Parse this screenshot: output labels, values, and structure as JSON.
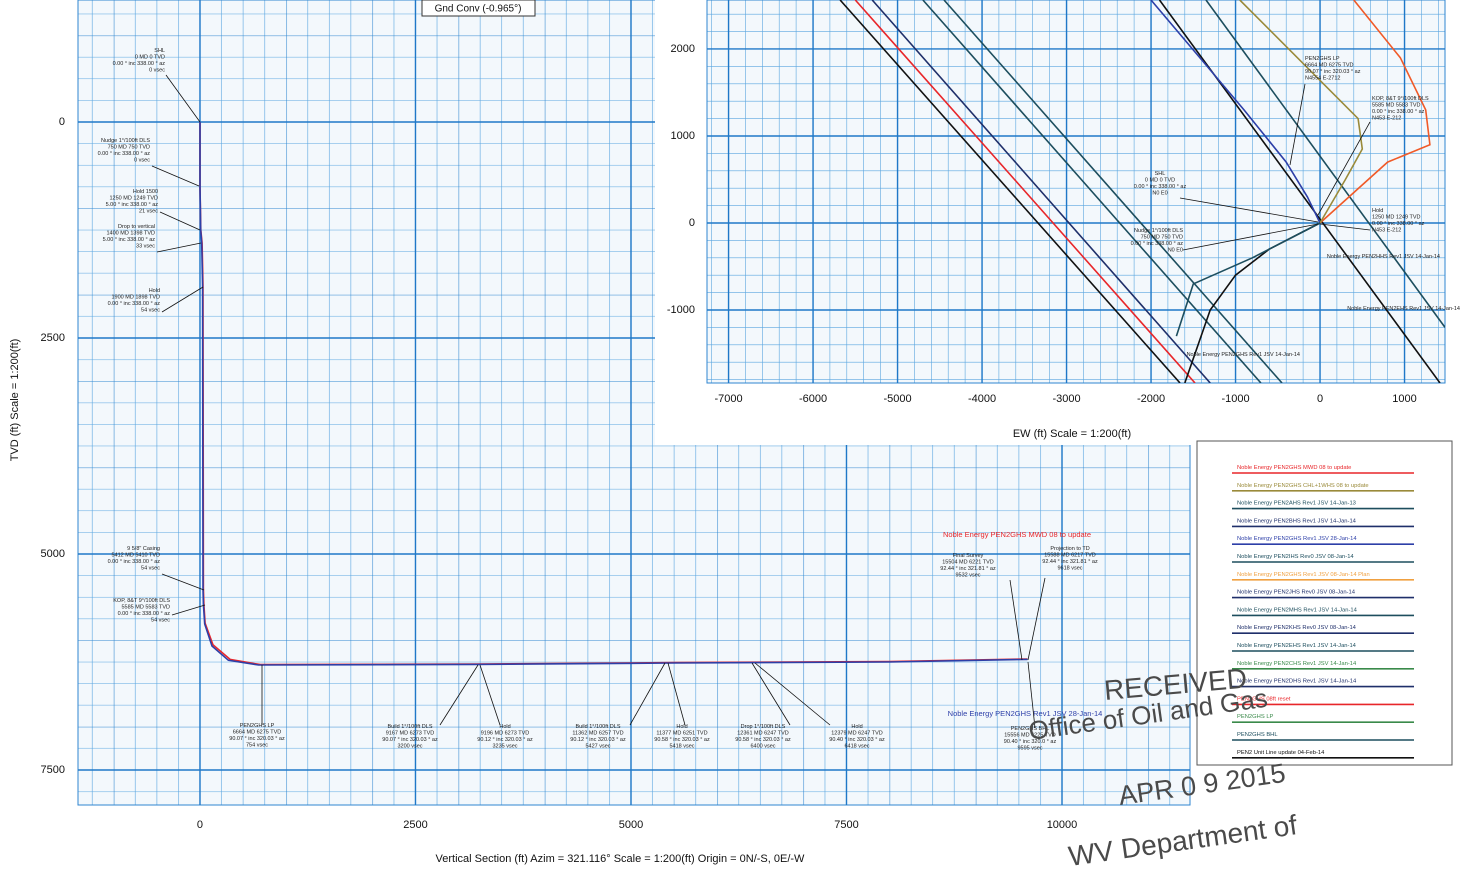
{
  "chart_data": [
    {
      "type": "line",
      "note": "Gnd Conv (-0.965°)",
      "xlabel": "Vertical Section (ft) Azim = 321.116° Scale = 1:200(ft) Origin = 0N/-S, 0E/-W",
      "ylabel": "TVD (ft) Scale = 1:200(ft)",
      "xlim": [
        -1415,
        11485
      ],
      "ylim": [
        -1412,
        7905
      ],
      "y_inverted": true,
      "xticks": [
        0,
        2500,
        5000,
        7500,
        10000
      ],
      "yticks": [
        0,
        2500,
        5000,
        7500
      ],
      "grid": true,
      "series": [
        {
          "name": "Noble Energy PEN2GHS MWD 08 to update",
          "color": "#e8262a",
          "x": [
            0,
            0,
            10,
            25,
            35,
            40,
            45,
            60,
            150,
            350,
            700,
            3200,
            5500,
            8000,
            9600
          ],
          "values": [
            0,
            750,
            1250,
            1400,
            1900,
            5400,
            5585,
            5800,
            6050,
            6220,
            6280,
            6273,
            6257,
            6245,
            6215
          ]
        },
        {
          "name": "Noble Energy PEN2GHS Rev1 JSV 28-Jan-14",
          "color": "#2d3fa8",
          "x": [
            0,
            0,
            8,
            20,
            30,
            35,
            40,
            55,
            140,
            330,
            680,
            3200,
            5500,
            8000,
            9600
          ],
          "values": [
            0,
            750,
            1250,
            1400,
            1900,
            5400,
            5585,
            5810,
            6065,
            6230,
            6285,
            6278,
            6262,
            6250,
            6220
          ]
        }
      ],
      "annotations": [
        [
          "SHL",
          "0 MD 0 TVD",
          "0.00 ° inc 338.00 ° az",
          "0 vsec"
        ],
        [
          "Nudge 1°/100ft DLS",
          "750 MD 750 TVD",
          "0.00 ° inc 338.00 ° az",
          "0 vsec"
        ],
        [
          "Hold 1500",
          "1250 MD 1249 TVD",
          "5.00 ° inc 338.00 ° az",
          "21 vsec"
        ],
        [
          "Drop to vertical",
          "1400 MD 1398 TVD",
          "5.00 ° inc 338.00 ° az",
          "33 vsec"
        ],
        [
          "Hold",
          "1900 MD 1898 TVD",
          "0.00 ° inc 338.00 ° az",
          "54 vsec"
        ],
        [
          "9 5/8\" Casing",
          "5412 MD 5410 TVD",
          "0.00 ° inc 338.00 ° az",
          "54 vsec"
        ],
        [
          "KOP, 8&T 9°/100ft DLS",
          "5585 MD 5583 TVD",
          "0.00 ° inc 338.00 ° az",
          "54 vsec"
        ],
        [
          "PEN2GHS LP",
          "6664 MD 6275 TVD",
          "90.07 ° inc 320.03 ° az",
          "754 vsec"
        ],
        [
          "Build 1°/100ft DLS",
          "9167 MD 6273 TVD",
          "90.07 ° inc 320.03 ° az",
          "3200 vsec"
        ],
        [
          "Hold",
          "9196 MD 6273 TVD",
          "90.12 ° inc 320.03 ° az",
          "3235 vsec"
        ],
        [
          "Build 1°/100ft DLS",
          "11362 MD 6257 TVD",
          "90.12 ° inc 320.03 ° az",
          "5427 vsec"
        ],
        [
          "Hold",
          "11377 MD 6251 TVD",
          "90.58 ° inc 320.03 ° az",
          "5418 vsec"
        ],
        [
          "Drop 1°/100ft DLS",
          "12361 MD 6247 TVD",
          "90.58 ° inc 320.03 ° az",
          "6400 vsec"
        ],
        [
          "Hold",
          "12379 MD 6247 TVD",
          "90.40 ° inc 320.03 ° az",
          "6418 vsec"
        ],
        [
          "Final Survey",
          "15504 MD 6221 TVD",
          "92.44 ° inc 321.81 ° az",
          "9532 vsec"
        ],
        [
          "Projection to TD",
          "15588 MD 6217 TVD",
          "92.44 ° inc 321.81 ° az",
          "9618 vsec"
        ],
        [
          "PEN2GHS BHL",
          "15556 MD 6225 TVD",
          "90.40 ° inc 320.0 ° az",
          "9595 vsec"
        ]
      ]
    },
    {
      "type": "line",
      "xlabel": "EW (ft) Scale = 1:200(ft)",
      "xlim": [
        -7255,
        1479
      ],
      "ylim": [
        -1839,
        2563
      ],
      "xticks": [
        -7000,
        -6000,
        -5000,
        -4000,
        -3000,
        -2000,
        -1000,
        0,
        1000
      ],
      "yticks": [
        -1000,
        0,
        1000,
        2000
      ],
      "grid": true,
      "series": [
        {
          "color": "#111111",
          "x": [
            -5680,
            -1657
          ],
          "values": [
            2563,
            -1839
          ]
        },
        {
          "color": "#e8262a",
          "x": [
            -5500,
            -1480
          ],
          "values": [
            2563,
            -1839
          ]
        },
        {
          "color": "#1f2f6a",
          "x": [
            -5300,
            -1300
          ],
          "values": [
            2563,
            -1839
          ]
        },
        {
          "color": "#1d4e5e",
          "x": [
            -4700,
            -700
          ],
          "values": [
            2563,
            -1839
          ]
        },
        {
          "color": "#1d4e5e",
          "x": [
            -4450,
            -450
          ],
          "values": [
            2563,
            -1839
          ]
        },
        {
          "color": "#111111",
          "x": [
            -1900,
            1420
          ],
          "values": [
            2563,
            -1839
          ]
        },
        {
          "color": "#1d4e5e",
          "x": [
            -1350,
            1479
          ],
          "values": [
            2563,
            -1200
          ]
        },
        {
          "color": "#2d3fa8",
          "x": [
            0,
            -150,
            -400,
            -900,
            -2000
          ],
          "values": [
            0,
            300,
            700,
            1300,
            2563
          ]
        },
        {
          "color": "#f05a28",
          "x": [
            0,
            800,
            1300,
            1250,
            950,
            400
          ],
          "values": [
            0,
            700,
            900,
            1300,
            1900,
            2563
          ]
        },
        {
          "color": "#9a8a3a",
          "x": [
            0,
            300,
            500,
            450,
            -950
          ],
          "values": [
            0,
            500,
            850,
            1200,
            2563
          ]
        },
        {
          "color": "#111111",
          "x": [
            0,
            -600,
            -1000,
            -1300,
            -1600
          ],
          "values": [
            0,
            -300,
            -600,
            -1000,
            -1839
          ]
        },
        {
          "color": "#1d4e5e",
          "x": [
            0,
            -800,
            -1500,
            -1700
          ],
          "values": [
            0,
            -400,
            -700,
            -1300
          ]
        }
      ],
      "annotations": [
        [
          "PEN2GHS LP",
          "6664 MD 6275 TVD",
          "90.07 ° inc 320.03 ° az",
          "N4554 E-2712"
        ],
        [
          "KOP, 8&T 9°/100ft DLS",
          "5585 MD 5583 TVD",
          "0.00 ° inc 338.00 ° az",
          "N453 E-212"
        ],
        [
          "SHL",
          "0 MD 0 TVD",
          "0.00 ° inc 338.00 ° az",
          "N0 E0"
        ],
        [
          "Nudge 1°/100ft DLS",
          "750 MD 750 TVD",
          "0.00 ° inc 338.00 ° az",
          "N0 E0"
        ],
        [
          "Hold",
          "1250 MD 1249 TVD",
          "0.00 ° inc 338.00 ° az",
          "N453 E-212"
        ],
        [
          "Noble Energy PEN2HHS Rev1 JSV 14-Jan-14"
        ],
        [
          "Noble Energy PEN2EHS Rev1 JSV 14-Jan-14"
        ],
        [
          "Noble Energy PEN2GHS Rev1 JSV 14-Jan-14"
        ]
      ]
    }
  ],
  "legend": [
    {
      "name": "Noble Energy PEN2GHS MWD 08 to update",
      "color": "#e8262a"
    },
    {
      "name": "Noble Energy PEN2GHS CHL+1WHS 08 to update",
      "color": "#9a8a3a"
    },
    {
      "name": "Noble Energy PEN2AHS Rev1 JSV 14-Jan-13",
      "color": "#1d4e5e"
    },
    {
      "name": "Noble Energy PEN2BHS Rev1 JSV 14-Jan-14",
      "color": "#1f2f6a"
    },
    {
      "name": "Noble Energy PEN2GHS Rev1 JSV 28-Jan-14",
      "color": "#2d3fa8"
    },
    {
      "name": "Noble Energy PEN2IHS Rev0 JSV 08-Jan-14",
      "color": "#1d4e5e"
    },
    {
      "name": "Noble Energy PEN2GHS Rev1 JSV 08-Jan-14 Plan",
      "color": "#f0a040"
    },
    {
      "name": "Noble Energy PEN2JHS Rev0 JSV 08-Jan-14",
      "color": "#1f2f6a"
    },
    {
      "name": "Noble Energy PEN2MHS Rev1 JSV 14-Jan-14",
      "color": "#1d4e5e"
    },
    {
      "name": "Noble Energy PEN2KHS Rev0 JSV 08-Jan-14",
      "color": "#1f2f6a"
    },
    {
      "name": "Noble Energy PEN2EHS Rev1 JSV 14-Jan-14",
      "color": "#1d4e5e"
    },
    {
      "name": "Noble Energy PEN2CHS Rev1 JSV 14-Jan-14",
      "color": "#3a8a4a"
    },
    {
      "name": "Noble Energy PEN2DHS Rev1 JSV 14-Jan-14",
      "color": "#1f2f6a"
    },
    {
      "name": "PEN2GHS 08ft reset",
      "color": "#e8262a"
    },
    {
      "name": "PEN2GHS LP",
      "color": "#3a8a4a"
    },
    {
      "name": "PEN2GHS BHL",
      "color": "#1d4e5e"
    },
    {
      "name": "PEN2 Unit Line update 04-Feb-14",
      "color": "#111111"
    }
  ],
  "stamp": {
    "received": "RECEIVED",
    "office": "Office of Oil and Gas",
    "date": "APR 0 9 2015",
    "dept": "WV Department of"
  }
}
